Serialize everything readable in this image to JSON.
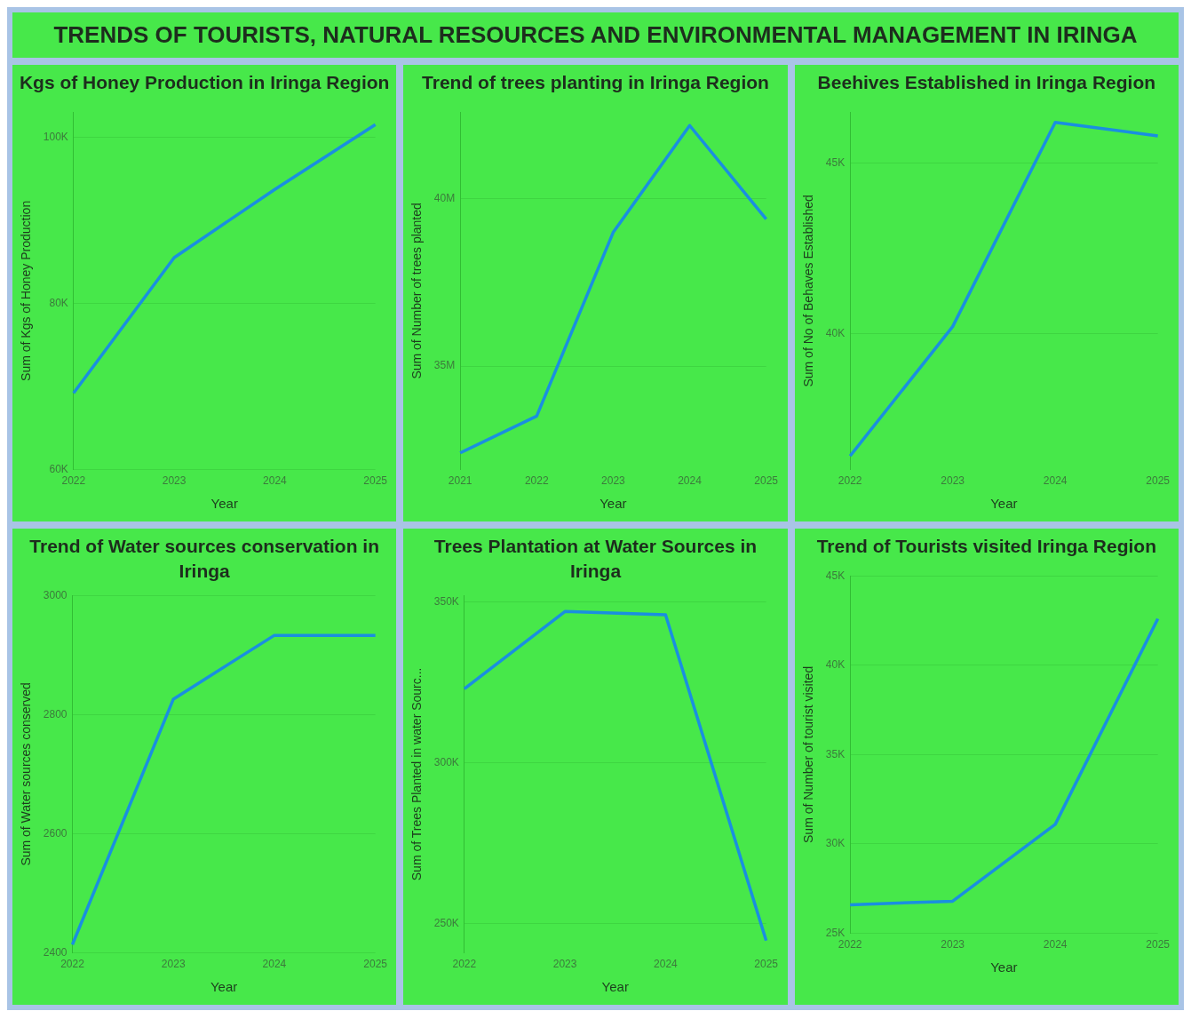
{
  "chart_data": [
    {
      "type": "other",
      "title": "TRENDS OF TOURISTS, NATURAL RESOURCES AND ENVIRONMENTAL MANAGEMENT IN IRINGA"
    },
    {
      "type": "line",
      "title": "Kgs of Honey Production in Iringa Region",
      "xlabel": "Year",
      "ylabel": "Sum of Kgs of Honey Production",
      "categories": [
        "2022",
        "2023",
        "2024",
        "2025"
      ],
      "values": [
        69200,
        85500,
        93700,
        101500
      ],
      "color": "#1a8fe0",
      "ylim": [
        60000,
        103000
      ],
      "yticks": [
        {
          "value": 60000,
          "label": "60K"
        },
        {
          "value": 80000,
          "label": "80K"
        },
        {
          "value": 100000,
          "label": "100K"
        }
      ],
      "grid": "y"
    },
    {
      "type": "line",
      "title": "Trend of trees planting in Iringa Region",
      "xlabel": "Year",
      "ylabel": "Sum of Number of trees planted",
      "categories": [
        "2021",
        "2022",
        "2023",
        "2024",
        "2025"
      ],
      "values": [
        32400000,
        33500000,
        39000000,
        42200000,
        39400000
      ],
      "color": "#1a8fe0",
      "ylim": [
        31900000,
        42600000
      ],
      "yticks": [
        {
          "value": 35000000,
          "label": "35M"
        },
        {
          "value": 40000000,
          "label": "40M"
        }
      ],
      "grid": "y"
    },
    {
      "type": "line",
      "title": "Beehives Established in Iringa Region",
      "xlabel": "Year",
      "ylabel": "Sum of No of Behaves Established",
      "categories": [
        "2022",
        "2023",
        "2024",
        "2025"
      ],
      "values": [
        36400,
        40200,
        46200,
        45800
      ],
      "color": "#1a8fe0",
      "ylim": [
        36000,
        46500
      ],
      "yticks": [
        {
          "value": 40000,
          "label": "40K"
        },
        {
          "value": 45000,
          "label": "45K"
        }
      ],
      "grid": "y"
    },
    {
      "type": "line",
      "title": "Trend of Water sources conservation in Iringa",
      "xlabel": "Year",
      "ylabel": "Sum of Water sources conserved",
      "categories": [
        "2022",
        "2023",
        "2024",
        "2025"
      ],
      "values": [
        2414,
        2826,
        2933,
        2933
      ],
      "color": "#1a8fe0",
      "ylim": [
        2400,
        3000
      ],
      "yticks": [
        2400,
        2600,
        2800,
        3000
      ],
      "grid": "y"
    },
    {
      "type": "line",
      "title": "Trees Plantation at Water Sources in Iringa",
      "xlabel": "Year",
      "ylabel": "Sum of Trees Planted in water Sourc...",
      "categories": [
        "2022",
        "2023",
        "2024",
        "2025"
      ],
      "values": [
        323000,
        347000,
        346000,
        244800
      ],
      "color": "#1a8fe0",
      "ylim": [
        241000,
        352000
      ],
      "yticks": [
        {
          "value": 250000,
          "label": "250K"
        },
        {
          "value": 300000,
          "label": "300K"
        },
        {
          "value": 350000,
          "label": "350K"
        }
      ],
      "grid": "y"
    },
    {
      "type": "line",
      "title": "Trend of Tourists visited Iringa Region",
      "xlabel": "Year",
      "ylabel": "Sum of Number of tourist visited",
      "categories": [
        "2022",
        "2023",
        "2024",
        "2025"
      ],
      "values": [
        26600,
        26800,
        31100,
        42600
      ],
      "color": "#1a8fe0",
      "ylim": [
        25000,
        45000
      ],
      "yticks": [
        {
          "value": 25000,
          "label": "25K"
        },
        {
          "value": 30000,
          "label": "30K"
        },
        {
          "value": 35000,
          "label": "35K"
        },
        {
          "value": 40000,
          "label": "40K"
        },
        {
          "value": 45000,
          "label": "45K"
        }
      ],
      "grid": "y"
    }
  ]
}
